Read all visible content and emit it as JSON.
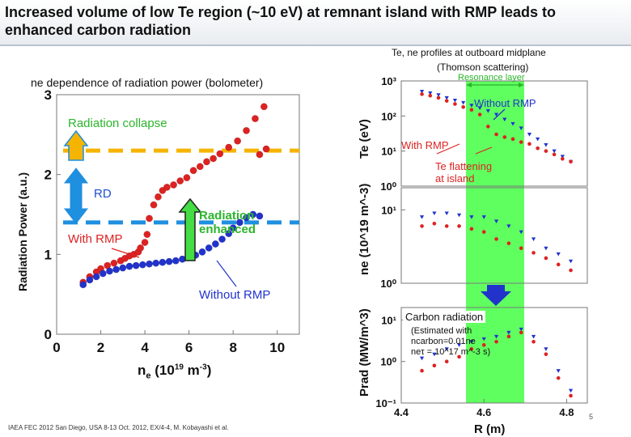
{
  "slide": {
    "title_line1": "Increased volume of low Te region (~10 eV) at remnant island with RMP leads to",
    "title_line2": "enhanced carbon radiation",
    "footer": "IAEA FEC 2012 San Diego, USA 8-13 Oct. 2012, EX/4-4, M. Kobayashi et al.",
    "page_number": "5"
  },
  "left": {
    "caption": "ne dependence of radiation power (bolometer)",
    "ylabel": "Radiation Power (a.u.)",
    "xlabel": "ne (10^19 m^-3)",
    "ann_collapse": "Radiation collapse",
    "ann_rd": "RD",
    "ann_with": "With RMP",
    "ann_enh1": "Radiation",
    "ann_enh2": "enhanced",
    "ann_without": "Without RMP"
  },
  "right": {
    "header1": "Te, ne profiles at outboard midplane",
    "header2": "(Thomson scattering)",
    "resonance": "Resonance layer",
    "without": "Without RMP",
    "with": "With RMP",
    "flat1": "Te flattening",
    "flat2": "at island",
    "carbon": "Carbon radiation",
    "est1": "(Estimated with",
    "est2": "ncarbon=0.01ne",
    "est3": "neτ = 10^17 m^-3 s)",
    "xlabel": "R (m)",
    "te_label": "Te (eV)",
    "ne_label": "ne (10^19 m^-3)",
    "prad_label": "Prad (MW/m^3)"
  },
  "colors": {
    "with_rmp": "#dd2222",
    "without_rmp": "#2233cc",
    "threshold": "#1f8fe0",
    "collapse_line": "#f5b400",
    "resonance": "#44ff44"
  },
  "chart_data": [
    {
      "type": "scatter",
      "xlabel": "ne (10^19 m^-3)",
      "ylabel": "Radiation Power (a.u.)",
      "xlim": [
        0,
        11
      ],
      "ylim": [
        0,
        3
      ],
      "xticks": [
        0,
        2,
        4,
        6,
        8,
        10
      ],
      "yticks": [
        0,
        1,
        2,
        3
      ],
      "series": [
        {
          "name": "With RMP",
          "x": [
            1.2,
            1.5,
            1.8,
            2.0,
            2.3,
            2.6,
            2.9,
            3.1,
            3.3,
            3.5,
            3.7,
            3.8,
            4.0,
            4.1,
            4.2,
            4.4,
            4.6,
            4.8,
            5.0,
            5.3,
            5.6,
            5.9,
            6.2,
            6.5,
            6.8,
            7.1,
            7.4,
            7.8,
            8.2,
            8.6,
            9.0,
            9.2,
            9.4,
            9.5
          ],
          "y": [
            0.65,
            0.72,
            0.78,
            0.82,
            0.86,
            0.89,
            0.92,
            0.95,
            0.98,
            1.0,
            1.03,
            1.08,
            1.15,
            1.25,
            1.45,
            1.62,
            1.72,
            1.8,
            1.84,
            1.87,
            1.92,
            1.96,
            2.05,
            2.1,
            2.16,
            2.2,
            2.26,
            2.34,
            2.42,
            2.55,
            2.7,
            2.25,
            2.85,
            2.32
          ]
        },
        {
          "name": "Without RMP",
          "x": [
            1.2,
            1.5,
            1.8,
            2.1,
            2.4,
            2.7,
            3.0,
            3.3,
            3.6,
            3.9,
            4.2,
            4.5,
            4.8,
            5.1,
            5.4,
            5.7,
            6.0,
            6.3,
            6.6,
            6.9,
            7.2,
            7.5,
            7.8,
            8.0,
            8.3,
            8.6,
            8.9,
            9.2
          ],
          "y": [
            0.62,
            0.68,
            0.72,
            0.76,
            0.79,
            0.81,
            0.83,
            0.85,
            0.86,
            0.87,
            0.88,
            0.89,
            0.9,
            0.91,
            0.92,
            0.94,
            0.96,
            0.99,
            1.03,
            1.08,
            1.13,
            1.19,
            1.26,
            1.33,
            1.4,
            1.46,
            1.5,
            1.48
          ]
        }
      ],
      "thresholds": [
        {
          "y": 1.4,
          "color": "#1f8fe0"
        },
        {
          "y": 2.3,
          "color": "#f5b400"
        }
      ]
    },
    {
      "type": "scatter",
      "ylabel": "Te (eV)",
      "yscale": "log",
      "ylim": [
        1,
        1000
      ],
      "xlim": [
        4.4,
        4.85
      ],
      "series": [
        {
          "name": "Without RMP",
          "x": [
            4.45,
            4.47,
            4.49,
            4.51,
            4.53,
            4.55,
            4.57,
            4.59,
            4.61,
            4.63,
            4.65,
            4.67,
            4.69,
            4.71,
            4.73,
            4.75,
            4.77,
            4.79,
            4.81
          ],
          "y": [
            500,
            450,
            400,
            330,
            280,
            240,
            200,
            170,
            140,
            110,
            80,
            60,
            45,
            30,
            22,
            15,
            10,
            7,
            5
          ]
        },
        {
          "name": "With RMP",
          "x": [
            4.45,
            4.47,
            4.49,
            4.51,
            4.53,
            4.55,
            4.57,
            4.59,
            4.61,
            4.63,
            4.65,
            4.67,
            4.69,
            4.71,
            4.73,
            4.75,
            4.77,
            4.79,
            4.81
          ],
          "y": [
            420,
            380,
            330,
            270,
            220,
            180,
            150,
            110,
            50,
            30,
            25,
            22,
            18,
            16,
            12,
            10,
            8,
            6,
            5
          ]
        }
      ]
    },
    {
      "type": "scatter",
      "ylabel": "ne (10^19 m^-3)",
      "yscale": "log",
      "ylim": [
        1,
        20
      ],
      "xlim": [
        4.4,
        4.85
      ],
      "series": [
        {
          "name": "Without RMP",
          "x": [
            4.45,
            4.48,
            4.51,
            4.54,
            4.57,
            4.6,
            4.63,
            4.66,
            4.69,
            4.72,
            4.75,
            4.78,
            4.81
          ],
          "y": [
            8,
            9,
            9,
            8.5,
            8,
            8,
            7,
            6,
            5,
            4,
            3,
            2.5,
            2
          ]
        },
        {
          "name": "With RMP",
          "x": [
            4.45,
            4.48,
            4.51,
            4.54,
            4.57,
            4.6,
            4.63,
            4.66,
            4.69,
            4.72,
            4.75,
            4.78,
            4.81
          ],
          "y": [
            6,
            6.5,
            6,
            6,
            5.5,
            5,
            4,
            3.5,
            3,
            2.6,
            2.2,
            1.8,
            1.5
          ]
        }
      ]
    },
    {
      "type": "scatter",
      "ylabel": "Prad (MW/m^3)",
      "xlabel": "R (m)",
      "yscale": "log",
      "ylim": [
        0.1,
        20
      ],
      "xlim": [
        4.4,
        4.85
      ],
      "xticks": [
        4.4,
        4.6,
        4.8
      ],
      "series": [
        {
          "name": "Without RMP",
          "x": [
            4.45,
            4.48,
            4.51,
            4.54,
            4.57,
            4.6,
            4.63,
            4.66,
            4.69,
            4.72,
            4.75,
            4.78,
            4.81
          ],
          "y": [
            1.2,
            1.5,
            2,
            2.5,
            3,
            3.5,
            4,
            5,
            6,
            4,
            2,
            0.6,
            0.2
          ]
        },
        {
          "name": "With RMP",
          "x": [
            4.45,
            4.48,
            4.51,
            4.54,
            4.57,
            4.6,
            4.63,
            4.66,
            4.69,
            4.72,
            4.75,
            4.78,
            4.81
          ],
          "y": [
            0.6,
            0.8,
            1,
            1.3,
            2,
            2.5,
            3,
            4,
            5,
            3,
            1.5,
            0.4,
            0.15
          ]
        }
      ]
    }
  ]
}
